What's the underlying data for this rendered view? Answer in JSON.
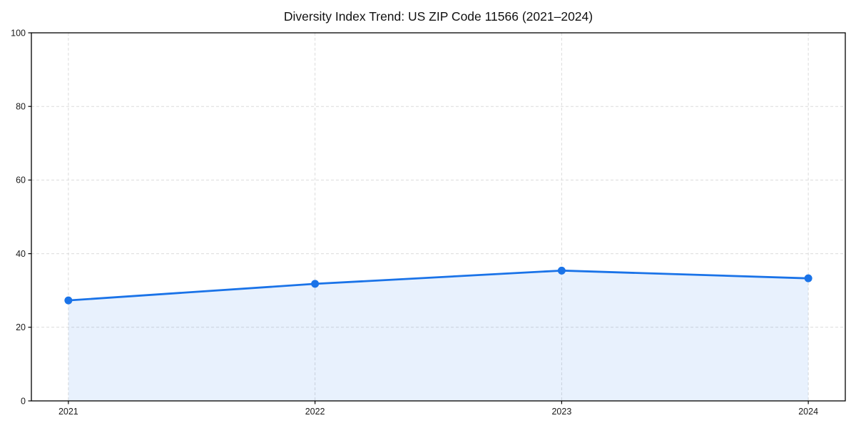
{
  "figure": {
    "title": "Diversity Index Trend: US ZIP Code 11566 (2021–2024)"
  },
  "chart_data": {
    "type": "line",
    "title": "Diversity Index Trend: US ZIP Code 11566 (2021–2024)",
    "x": [
      2021,
      2022,
      2023,
      2024
    ],
    "values": [
      27.3,
      31.8,
      35.4,
      33.3
    ],
    "xlabel": "",
    "ylabel": "",
    "ylim": [
      0,
      100
    ],
    "yticks": [
      0,
      20,
      40,
      60,
      80,
      100
    ],
    "xticks": [
      2021,
      2022,
      2023,
      2024
    ],
    "xtick_labels": [
      "2021",
      "2022",
      "2023",
      "2024"
    ],
    "grid": true,
    "grid_style": "dashed",
    "legend": "none",
    "area_fill": true,
    "marker": "circle",
    "colors": {
      "line": "#1a73e8",
      "marker": "#1a73e8",
      "fill": "rgba(26,115,232,0.10)",
      "grid": "#dcdcdc",
      "spine": "#000000",
      "tick": "#000000",
      "tick_label": "#1a1a1a",
      "title": "#111111",
      "background": "#ffffff"
    }
  }
}
